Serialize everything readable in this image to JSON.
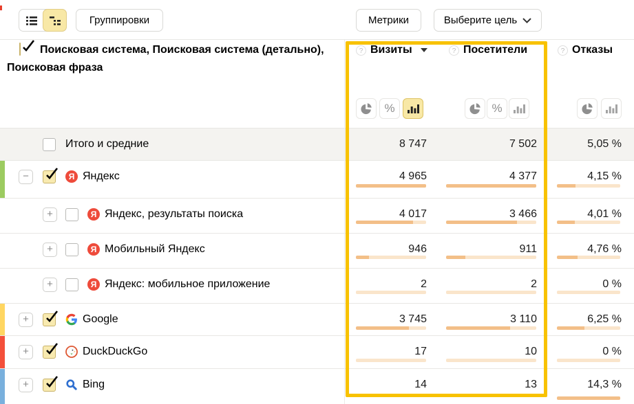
{
  "toolbar": {
    "groupings": "Группировки",
    "metrics": "Метрики",
    "goal": "Выберите цель"
  },
  "header": {
    "dimensions": "Поисковая система, Поисковая система (детально), Поисковая фраза"
  },
  "columns": [
    {
      "key": "visits",
      "label": "Визиты",
      "sortable": true,
      "modes": [
        "pie",
        "percent",
        "bars"
      ],
      "active_mode": "bars"
    },
    {
      "key": "visitors",
      "label": "Посетители",
      "sortable": false,
      "modes": [
        "pie",
        "percent",
        "bars"
      ],
      "active_mode": null
    },
    {
      "key": "bounce",
      "label": "Отказы",
      "sortable": false,
      "modes": [
        "pie",
        "bars"
      ],
      "active_mode": null
    }
  ],
  "rows": [
    {
      "id": "totals",
      "label": "Итого и средние",
      "icon": null,
      "strip": null,
      "level": 0,
      "expand": null,
      "checked": false,
      "visits": "8 747",
      "visitors": "7 502",
      "bounce": "5,05 %",
      "bars": null
    },
    {
      "id": "yandex",
      "label": "Яндекс",
      "icon": "yandex",
      "strip": "#9ccb60",
      "level": 0,
      "expand": "minus",
      "checked": true,
      "visits": "4 965",
      "visitors": "4 377",
      "bounce": "4,15 %",
      "bars": {
        "visits": 100,
        "visitors": 100,
        "bounce": 29
      }
    },
    {
      "id": "yandex-serp",
      "label": "Яндекс, результаты поиска",
      "icon": "yandex",
      "strip": null,
      "level": 1,
      "expand": "plus",
      "checked": false,
      "visits": "4 017",
      "visitors": "3 466",
      "bounce": "4,01 %",
      "bars": {
        "visits": 81,
        "visitors": 79,
        "bounce": 28
      }
    },
    {
      "id": "yandex-mob",
      "label": "Мобильный Яндекс",
      "icon": "yandex",
      "strip": null,
      "level": 1,
      "expand": "plus",
      "checked": false,
      "visits": "946",
      "visitors": "911",
      "bounce": "4,76 %",
      "bars": {
        "visits": 19,
        "visitors": 21,
        "bounce": 33
      }
    },
    {
      "id": "yandex-app",
      "label": "Яндекс: мобильное приложение",
      "icon": "yandex",
      "strip": null,
      "level": 1,
      "expand": "plus",
      "checked": false,
      "visits": "2",
      "visitors": "2",
      "bounce": "0 %",
      "bars": {
        "visits": 0,
        "visitors": 0,
        "bounce": 0
      }
    },
    {
      "id": "google",
      "label": "Google",
      "icon": "google",
      "strip": "#ffd661",
      "level": 0,
      "expand": "plus",
      "checked": true,
      "visits": "3 745",
      "visitors": "3 110",
      "bounce": "6,25 %",
      "bars": {
        "visits": 75,
        "visitors": 71,
        "bounce": 44
      }
    },
    {
      "id": "duckduckgo",
      "label": "DuckDuckGo",
      "icon": "duckduckgo",
      "strip": "#f4503a",
      "level": 0,
      "expand": "plus",
      "checked": true,
      "visits": "17",
      "visitors": "10",
      "bounce": "0 %",
      "bars": {
        "visits": 0,
        "visitors": 0,
        "bounce": 0
      }
    },
    {
      "id": "bing",
      "label": "Bing",
      "icon": "bing",
      "strip": "#79b0dd",
      "level": 0,
      "expand": "plus",
      "checked": true,
      "visits": "14",
      "visitors": "13",
      "bounce": "14,3 %",
      "bars": {
        "visits": null,
        "visitors": null,
        "bounce": 100
      }
    }
  ],
  "icons": {
    "view_flat": "flat-list-icon",
    "view_tree": "tree-list-icon",
    "goal_chevron": "chevron-down-icon",
    "help": "help-circle-icon",
    "sort": "sort-caret-icon",
    "pie": "pie-chart-icon",
    "percent": "percent-icon",
    "bars": "bar-chart-icon"
  },
  "colors": {
    "highlight_frame": "#f8c200",
    "selected_control_bg": "#f8e8a6",
    "bar_fill": "#f3bf88",
    "bar_track": "#fae5cb",
    "totals_row_bg": "#f4f3f0",
    "yandex_badge": "#ee4b3b"
  }
}
